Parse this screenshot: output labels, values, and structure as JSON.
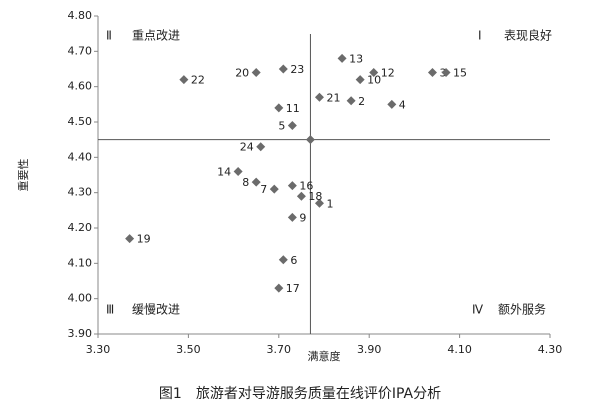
{
  "chart_data": {
    "type": "scatter",
    "caption": "图1　旅游者对导游服务质量在线评价IPA分析",
    "x_label": "满意度",
    "y_label": "重要性",
    "xlim": [
      3.3,
      4.3
    ],
    "ylim": [
      3.9,
      4.8
    ],
    "xticks": [
      {
        "value": 3.3,
        "label": "3.30"
      },
      {
        "value": 3.5,
        "label": "3.50"
      },
      {
        "value": 3.7,
        "label": "3.70"
      },
      {
        "value": 3.9,
        "label": "3.90"
      },
      {
        "value": 4.1,
        "label": "4.10"
      },
      {
        "value": 4.3,
        "label": "4.30"
      }
    ],
    "yticks": [
      {
        "value": 3.9,
        "label": "3.90"
      },
      {
        "value": 4.0,
        "label": "4.00"
      },
      {
        "value": 4.1,
        "label": "4.10"
      },
      {
        "value": 4.2,
        "label": "4.20"
      },
      {
        "value": 4.3,
        "label": "4.30"
      },
      {
        "value": 4.4,
        "label": "4.40"
      },
      {
        "value": 4.5,
        "label": "4.50"
      },
      {
        "value": 4.6,
        "label": "4.60"
      },
      {
        "value": 4.7,
        "label": "4.70"
      },
      {
        "value": 4.8,
        "label": "4.80"
      }
    ],
    "ref_x": 3.77,
    "ref_y": 4.45,
    "color": "#6b6b6b",
    "labels": [
      "1",
      "2",
      "3",
      "4",
      "5",
      "6",
      "7",
      "8",
      "9",
      "10",
      "11",
      "12",
      "13",
      "14",
      "15",
      "16",
      "17",
      "18",
      "19",
      "20",
      "21",
      "22",
      "23",
      "24",
      null
    ],
    "x": [
      3.79,
      3.86,
      4.04,
      3.95,
      3.73,
      3.71,
      3.69,
      3.65,
      3.73,
      3.88,
      3.7,
      3.91,
      3.84,
      3.61,
      4.07,
      3.73,
      3.7,
      3.75,
      3.37,
      3.65,
      3.79,
      3.49,
      3.71,
      3.66,
      3.77
    ],
    "y": [
      4.27,
      4.56,
      4.64,
      4.55,
      4.49,
      4.11,
      4.31,
      4.33,
      4.23,
      4.62,
      4.54,
      4.64,
      4.68,
      4.36,
      4.64,
      4.32,
      4.03,
      4.29,
      4.17,
      4.64,
      4.57,
      4.62,
      4.65,
      4.43,
      4.45
    ],
    "quadrants": [
      {
        "numeral": "Ⅱ",
        "label": "重点改进"
      },
      {
        "numeral": "Ⅰ",
        "label": "表现良好"
      },
      {
        "numeral": "Ⅲ",
        "label": "缓慢改进"
      },
      {
        "numeral": "Ⅳ",
        "label": "额外服务"
      }
    ]
  }
}
